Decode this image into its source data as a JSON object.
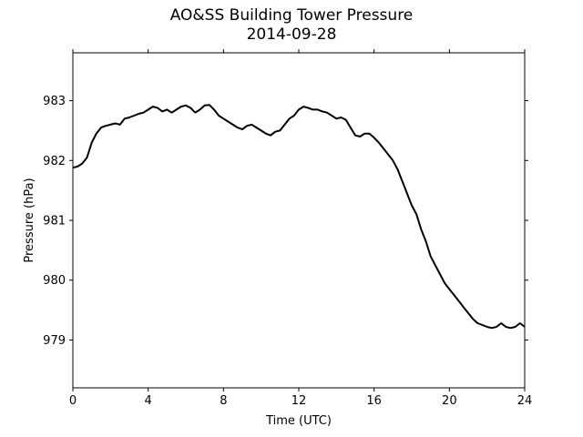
{
  "chart_data": {
    "type": "line",
    "title": "AO&SS Building Tower Pressure",
    "subtitle": "2014-09-28",
    "xlabel": "Time (UTC)",
    "ylabel": "Pressure (hPa)",
    "xlim": [
      0,
      24
    ],
    "ylim": [
      978.2,
      983.8
    ],
    "xticks": [
      0,
      4,
      8,
      12,
      16,
      20,
      24
    ],
    "yticks": [
      979,
      980,
      981,
      982,
      983
    ],
    "grid": false,
    "line_color": "#000000",
    "series": [
      {
        "x": [
          0,
          0.25,
          0.5,
          0.75,
          1,
          1.25,
          1.5,
          1.75,
          2,
          2.25,
          2.5,
          2.75,
          3,
          3.25,
          3.5,
          3.75,
          4,
          4.25,
          4.5,
          4.75,
          5,
          5.25,
          5.5,
          5.75,
          6,
          6.25,
          6.5,
          6.75,
          7,
          7.25,
          7.5,
          7.75,
          8,
          8.25,
          8.5,
          8.75,
          9,
          9.25,
          9.5,
          9.75,
          10,
          10.25,
          10.5,
          10.75,
          11,
          11.25,
          11.5,
          11.75,
          12,
          12.25,
          12.5,
          12.75,
          13,
          13.25,
          13.5,
          13.75,
          14,
          14.25,
          14.5,
          14.75,
          15,
          15.25,
          15.5,
          15.75,
          16,
          16.25,
          16.5,
          16.75,
          17,
          17.25,
          17.5,
          17.75,
          18,
          18.25,
          18.5,
          18.75,
          19,
          19.25,
          19.5,
          19.75,
          20,
          20.25,
          20.5,
          20.75,
          21,
          21.25,
          21.5,
          21.75,
          22,
          22.25,
          22.5,
          22.75,
          23,
          23.25,
          23.5,
          23.75,
          24
        ],
        "values": [
          981.88,
          981.9,
          981.95,
          982.05,
          982.3,
          982.45,
          982.55,
          982.58,
          982.6,
          982.62,
          982.6,
          982.7,
          982.72,
          982.75,
          982.78,
          982.8,
          982.85,
          982.9,
          982.88,
          982.82,
          982.85,
          982.8,
          982.85,
          982.9,
          982.92,
          982.88,
          982.8,
          982.85,
          982.92,
          982.93,
          982.85,
          982.75,
          982.7,
          982.65,
          982.6,
          982.55,
          982.52,
          982.58,
          982.6,
          982.55,
          982.5,
          982.45,
          982.42,
          982.48,
          982.5,
          982.6,
          982.7,
          982.75,
          982.85,
          982.9,
          982.88,
          982.85,
          982.85,
          982.82,
          982.8,
          982.75,
          982.7,
          982.72,
          982.68,
          982.55,
          982.42,
          982.4,
          982.45,
          982.45,
          982.38,
          982.3,
          982.2,
          982.1,
          982.0,
          981.85,
          981.65,
          981.45,
          981.25,
          981.1,
          980.85,
          980.65,
          980.4,
          980.25,
          980.1,
          979.95,
          979.85,
          979.75,
          979.65,
          979.55,
          979.45,
          979.35,
          979.28,
          979.25,
          979.22,
          979.2,
          979.22,
          979.28,
          979.22,
          979.2,
          979.22,
          979.28,
          979.22
        ]
      }
    ]
  }
}
